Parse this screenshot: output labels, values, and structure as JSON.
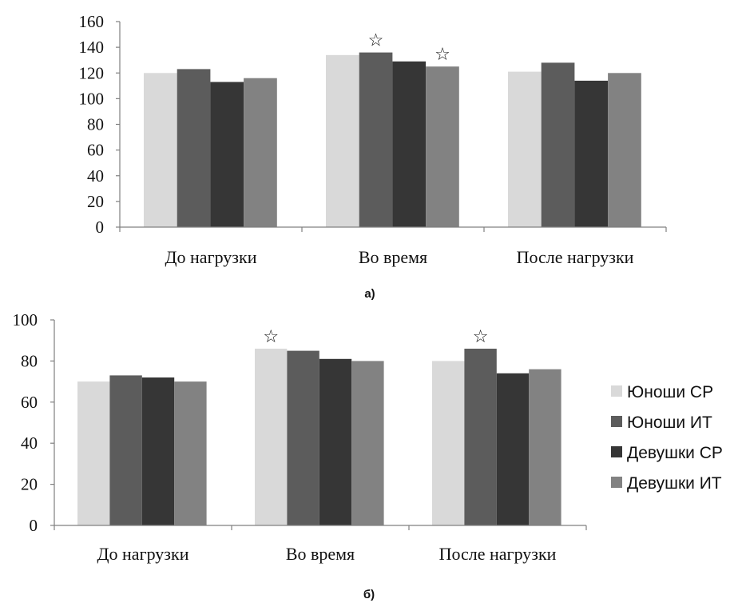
{
  "chart_data": [
    {
      "type": "bar",
      "caption": "а)",
      "categories": [
        "До нагрузки",
        "Во время",
        "После нагрузки"
      ],
      "series": [
        {
          "name": "Юноши СР",
          "values": [
            120,
            134,
            121
          ]
        },
        {
          "name": "Юноши ИТ",
          "values": [
            123,
            136,
            128
          ]
        },
        {
          "name": "Девушки СР",
          "values": [
            113,
            129,
            114
          ]
        },
        {
          "name": "Девушки ИТ",
          "values": [
            116,
            125,
            120
          ]
        }
      ],
      "ylim": [
        0,
        160
      ],
      "yticks": [
        0,
        20,
        40,
        60,
        80,
        100,
        120,
        140,
        160
      ],
      "grid": false,
      "legend": "none",
      "markers": [
        {
          "category_index": 1,
          "series_index": 1,
          "symbol": "☆"
        },
        {
          "category_index": 1,
          "series_index": 3,
          "symbol": "☆"
        }
      ]
    },
    {
      "type": "bar",
      "caption": "б)",
      "categories": [
        "До нагрузки",
        "Во время",
        "После нагрузки"
      ],
      "series": [
        {
          "name": "Юноши СР",
          "values": [
            70,
            86,
            80
          ]
        },
        {
          "name": "Юноши ИТ",
          "values": [
            73,
            85,
            86
          ]
        },
        {
          "name": "Девушки СР",
          "values": [
            72,
            81,
            74
          ]
        },
        {
          "name": "Девушки ИТ",
          "values": [
            70,
            80,
            76
          ]
        }
      ],
      "ylim": [
        0,
        100
      ],
      "yticks": [
        0,
        20,
        40,
        60,
        80,
        100
      ],
      "grid": false,
      "legend": "right",
      "markers": [
        {
          "category_index": 1,
          "series_index": 0,
          "symbol": "☆"
        },
        {
          "category_index": 2,
          "series_index": 1,
          "symbol": "☆"
        }
      ]
    }
  ],
  "colors": {
    "series": [
      "#d9d9d9",
      "#5c5c5c",
      "#363636",
      "#828282"
    ],
    "axis": "#808080"
  }
}
